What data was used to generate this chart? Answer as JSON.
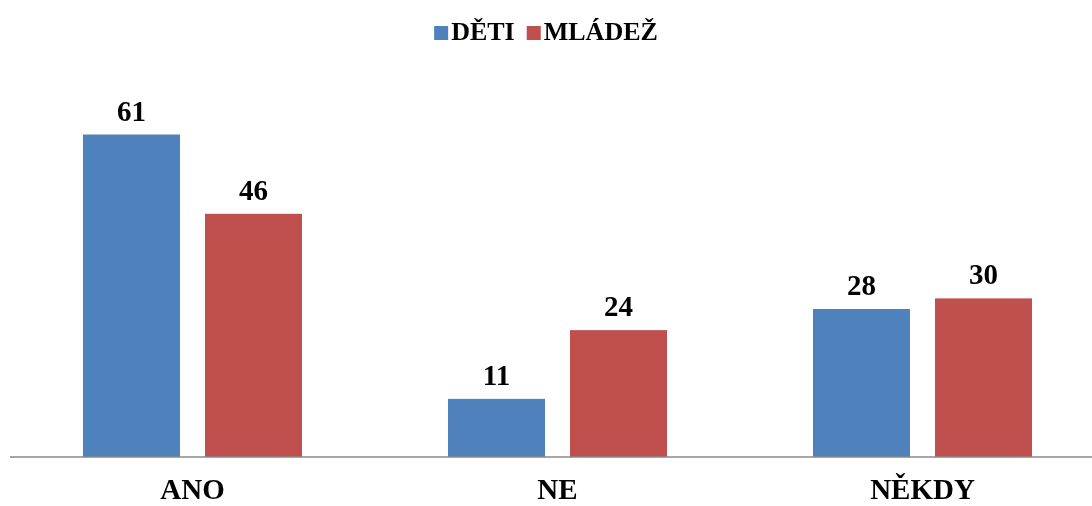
{
  "chart_data": {
    "type": "bar",
    "categories": [
      "ANO",
      "NE",
      "NĚKDY"
    ],
    "series": [
      {
        "name": "DĚTI",
        "color": "#4f81bd",
        "values": [
          61,
          11,
          28
        ]
      },
      {
        "name": "MLÁDEŽ",
        "color": "#c0504d",
        "values": [
          46,
          24,
          30
        ]
      }
    ],
    "data_labels": true,
    "legend": "top"
  }
}
